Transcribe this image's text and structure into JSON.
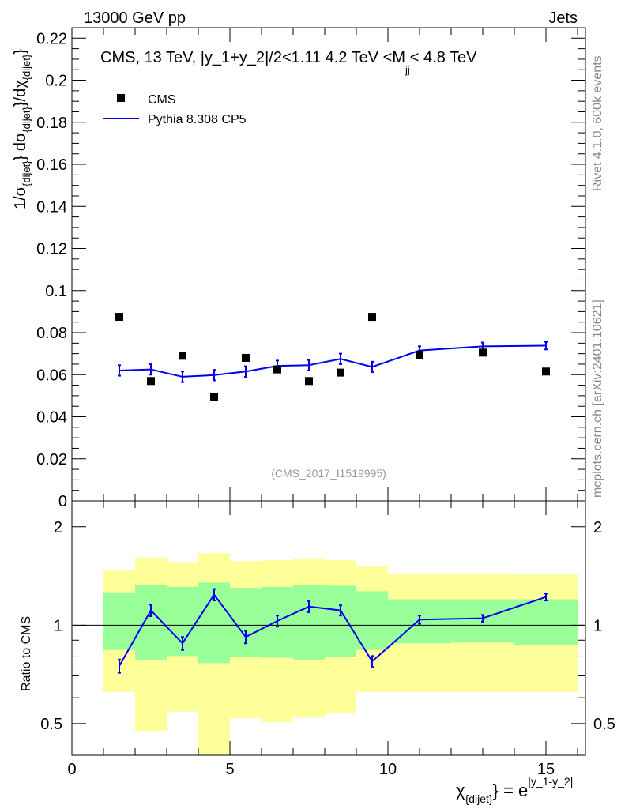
{
  "header": {
    "left": "13000 GeV pp",
    "right": "Jets"
  },
  "side_texts": {
    "rivet": "Rivet 4.1.0,  600k events",
    "mcplots": "mcplots.cern.ch [arXiv:2401.10621]"
  },
  "colors": {
    "data": "#000000",
    "mc": "#0000ee",
    "band_outer": "#ffff99",
    "band_inner": "#99ff99",
    "watermark": "#999999"
  },
  "chart_data": [
    {
      "type": "scatter",
      "panel": "main",
      "title_parts": [
        "CMS, 13 TeV, |y_1+y_2|/2<1.11 4.2 TeV <M",
        "jj",
        "< 4.8 TeV"
      ],
      "ylabel_parts": [
        "1/σ",
        "{dijet}",
        "} dσ",
        "{dijet}",
        "}/dχ",
        "{dijet}",
        "}"
      ],
      "watermark": "(CMS_2017_I1519995)",
      "xlim": [
        0,
        16.25
      ],
      "ylim": [
        0,
        0.225
      ],
      "yticks": [
        0,
        0.02,
        0.04,
        0.06,
        0.08,
        0.1,
        0.12,
        0.14,
        0.16,
        0.18,
        0.2,
        0.22
      ],
      "ytick_labels": [
        "0",
        "0.02",
        "0.04",
        "0.06",
        "0.08",
        "0.1",
        "0.12",
        "0.14",
        "0.16",
        "0.18",
        "0.2",
        "0.22"
      ],
      "legend_position": "top-left",
      "legend": [
        "CMS",
        "Pythia 8.308 CP5"
      ],
      "series": [
        {
          "name": "CMS",
          "style": "markers",
          "x": [
            1.5,
            2.5,
            3.5,
            4.5,
            5.5,
            6.5,
            7.5,
            8.5,
            9.5,
            11,
            13,
            15
          ],
          "y": [
            0.0875,
            0.057,
            0.069,
            0.0495,
            0.068,
            0.0625,
            0.057,
            0.061,
            0.0875,
            0.0695,
            0.0705,
            0.0615
          ]
        },
        {
          "name": "Pythia 8.308 CP5",
          "style": "line",
          "x": [
            1.5,
            2.5,
            3.5,
            4.5,
            5.5,
            6.5,
            7.5,
            8.5,
            9.5,
            11,
            13,
            15
          ],
          "y": [
            0.062,
            0.0625,
            0.059,
            0.0598,
            0.0615,
            0.0642,
            0.0645,
            0.0675,
            0.0637,
            0.0715,
            0.0735,
            0.0738
          ],
          "yerr": [
            0.0025,
            0.0025,
            0.0025,
            0.0025,
            0.0025,
            0.0025,
            0.0025,
            0.0025,
            0.0025,
            0.002,
            0.0018,
            0.0018
          ]
        }
      ]
    },
    {
      "type": "line",
      "panel": "ratio",
      "ylabel": "Ratio to CMS",
      "xlabel_parts": [
        "χ",
        "{dijet}",
        "} = e",
        "|y_1-y_2|"
      ],
      "xlim": [
        0,
        16.25
      ],
      "ylim": [
        0.4,
        2.4
      ],
      "yscale": "log",
      "yticks": [
        0.5,
        1,
        2
      ],
      "ytick_labels": [
        "0.5",
        "1",
        "2"
      ],
      "xticks": [
        0,
        5,
        10,
        15
      ],
      "xtick_labels": [
        "0",
        "5",
        "10",
        "15"
      ],
      "reference": 1,
      "bands": {
        "edges": [
          1,
          2,
          3,
          4,
          5,
          6,
          7,
          8,
          9,
          10,
          12,
          14,
          16
        ],
        "outer_low": [
          0.625,
          0.475,
          0.545,
          0.4,
          0.52,
          0.505,
          0.525,
          0.54,
          0.625,
          0.625,
          0.625,
          0.625
        ],
        "outer_high": [
          1.48,
          1.61,
          1.56,
          1.66,
          1.57,
          1.58,
          1.6,
          1.58,
          1.51,
          1.44,
          1.44,
          1.43
        ],
        "inner_low": [
          0.84,
          0.785,
          0.805,
          0.765,
          0.8,
          0.795,
          0.785,
          0.8,
          0.84,
          0.88,
          0.885,
          0.87
        ],
        "inner_high": [
          1.26,
          1.33,
          1.31,
          1.35,
          1.3,
          1.31,
          1.33,
          1.32,
          1.27,
          1.2,
          1.2,
          1.2
        ]
      },
      "series": [
        {
          "name": "Pythia 8.308 CP5 / CMS",
          "x": [
            1.5,
            2.5,
            3.5,
            4.5,
            5.5,
            6.5,
            7.5,
            8.5,
            9.5,
            11,
            13,
            15
          ],
          "y": [
            0.75,
            1.11,
            0.88,
            1.24,
            0.92,
            1.03,
            1.14,
            1.11,
            0.775,
            1.04,
            1.05,
            1.22
          ],
          "yerr": [
            0.035,
            0.045,
            0.04,
            0.05,
            0.04,
            0.04,
            0.045,
            0.04,
            0.03,
            0.03,
            0.025,
            0.03
          ]
        }
      ]
    }
  ]
}
